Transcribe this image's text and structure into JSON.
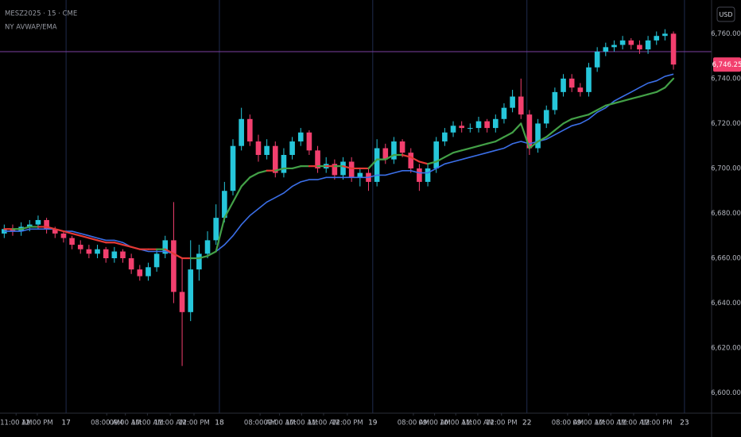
{
  "chart_data": {
    "type": "candlestick",
    "title": "MESZ2025 · 15 · CME",
    "subtitle": "NY AVWAP/EMA",
    "currency": "USD",
    "up_color": "#26c6da",
    "down_color": "#f23f6e",
    "xlim": [
      -0.5,
      83.5
    ],
    "ylim": [
      6591,
      6775
    ],
    "yticks": [
      {
        "value": 6600,
        "label": "6,600.00"
      },
      {
        "value": 6620,
        "label": "6,620.00"
      },
      {
        "value": 6640,
        "label": "6,640.00"
      },
      {
        "value": 6660,
        "label": "6,660.00"
      },
      {
        "value": 6680,
        "label": "6,680.00"
      },
      {
        "value": 6700,
        "label": "6,700.00"
      },
      {
        "value": 6720,
        "label": "6,720.00"
      },
      {
        "value": 6740,
        "label": "6,740.00"
      },
      {
        "value": 6760,
        "label": "6,760.00"
      }
    ],
    "xticks": [
      {
        "value": 1.4,
        "label": "11:00 AM"
      },
      {
        "value": 3.9,
        "label": "12:00 PM"
      },
      {
        "value": 12.1,
        "label": "08:00 AM"
      },
      {
        "value": 14.3,
        "label": "09:00 AM"
      },
      {
        "value": 16.9,
        "label": "10:00 AM"
      },
      {
        "value": 19.6,
        "label": "11:00 AM"
      },
      {
        "value": 22.4,
        "label": "12:00 PM"
      },
      {
        "value": 30.2,
        "label": "08:00 AM"
      },
      {
        "value": 32.5,
        "label": "09:00 AM"
      },
      {
        "value": 35.1,
        "label": "10:00 AM"
      },
      {
        "value": 37.7,
        "label": "11:00 AM"
      },
      {
        "value": 40.5,
        "label": "12:00 PM"
      },
      {
        "value": 48.3,
        "label": "08:00 AM"
      },
      {
        "value": 50.8,
        "label": "09:00 AM"
      },
      {
        "value": 53.3,
        "label": "10:00 AM"
      },
      {
        "value": 55.9,
        "label": "11:00 AM"
      },
      {
        "value": 58.7,
        "label": "12:00 PM"
      },
      {
        "value": 66.5,
        "label": "08:00 AM"
      },
      {
        "value": 69,
        "label": "09:00 AM"
      },
      {
        "value": 71.6,
        "label": "10:00 AM"
      },
      {
        "value": 74.3,
        "label": "11:00 AM"
      },
      {
        "value": 77,
        "label": "12:00 PM"
      }
    ],
    "session_breaks": [
      {
        "value": 7.3,
        "label": "17"
      },
      {
        "value": 25.4,
        "label": "18"
      },
      {
        "value": 43.5,
        "label": "19"
      },
      {
        "value": 61.7,
        "label": "22"
      },
      {
        "value": 80.3,
        "label": "23"
      }
    ],
    "level_line": {
      "value": 6752,
      "color": "#7b3fa0"
    },
    "last_price": {
      "value": 6746.25,
      "label": "6,746.25"
    },
    "open": [
      6671,
      6673,
      6672,
      6674,
      6675,
      6677,
      6673,
      6671,
      6669,
      6666,
      6664,
      6662,
      6664,
      6660,
      6663,
      6660,
      6655,
      6652,
      6656,
      6662,
      6668,
      6645,
      6636,
      6655,
      6662,
      6668,
      6678,
      6690,
      6710,
      6722,
      6712,
      6706,
      6710,
      6698,
      6706,
      6712,
      6716,
      6708,
      6700,
      6702,
      6697,
      6703,
      6696,
      6698,
      6694,
      6709,
      6704,
      6712,
      6707,
      6700,
      6694,
      6700,
      6712,
      6716,
      6719,
      6718,
      6718,
      6721,
      6718,
      6722,
      6727,
      6732,
      6724,
      6709,
      6720,
      6726,
      6734,
      6740,
      6736,
      6734,
      6745,
      6752,
      6754,
      6755,
      6757,
      6755,
      6753,
      6757,
      6759,
      6760
    ],
    "high": [
      6675,
      6675,
      6676,
      6677,
      6679,
      6678,
      6674,
      6672,
      6670,
      6668,
      6666,
      6666,
      6665,
      6665,
      6664,
      6662,
      6657,
      6658,
      6664,
      6670,
      6685,
      6660,
      6668,
      6666,
      6672,
      6684,
      6694,
      6713,
      6727,
      6724,
      6715,
      6713,
      6712,
      6709,
      6714,
      6718,
      6717,
      6710,
      6705,
      6704,
      6705,
      6705,
      6700,
      6700,
      6713,
      6711,
      6714,
      6713,
      6709,
      6702,
      6702,
      6714,
      6718,
      6721,
      6721,
      6720,
      6723,
      6722,
      6724,
      6729,
      6735,
      6740,
      6726,
      6722,
      6728,
      6736,
      6742,
      6742,
      6738,
      6747,
      6754,
      6756,
      6757,
      6759,
      6758,
      6757,
      6759,
      6761,
      6762,
      6761
    ],
    "low": [
      6669,
      6670,
      6670,
      6672,
      6673,
      6671,
      6669,
      6667,
      6664,
      6662,
      6660,
      6660,
      6658,
      6658,
      6658,
      6653,
      6650,
      6650,
      6654,
      6660,
      6640,
      6612,
      6632,
      6650,
      6660,
      6666,
      6676,
      6688,
      6708,
      6710,
      6703,
      6704,
      6696,
      6696,
      6704,
      6710,
      6706,
      6698,
      6698,
      6695,
      6695,
      6694,
      6692,
      6690,
      6692,
      6702,
      6702,
      6705,
      6698,
      6690,
      6692,
      6698,
      6710,
      6714,
      6716,
      6716,
      6716,
      6716,
      6716,
      6720,
      6725,
      6722,
      6706,
      6707,
      6718,
      6724,
      6732,
      6734,
      6732,
      6732,
      6743,
      6750,
      6752,
      6753,
      6753,
      6751,
      6751,
      6755,
      6757,
      6744
    ],
    "close": [
      6673,
      6672,
      6674,
      6675,
      6677,
      6673,
      6671,
      6669,
      6666,
      6664,
      6662,
      6664,
      6660,
      6663,
      6660,
      6655,
      6652,
      6656,
      6662,
      6668,
      6645,
      6636,
      6655,
      6662,
      6668,
      6678,
      6690,
      6710,
      6722,
      6712,
      6706,
      6710,
      6698,
      6706,
      6712,
      6716,
      6708,
      6700,
      6702,
      6697,
      6703,
      6696,
      6698,
      6694,
      6709,
      6704,
      6712,
      6707,
      6700,
      6694,
      6700,
      6712,
      6716,
      6719,
      6718,
      6718,
      6721,
      6718,
      6722,
      6727,
      6732,
      6724,
      6709,
      6720,
      6726,
      6734,
      6740,
      6736,
      6734,
      6745,
      6752,
      6754,
      6755,
      6757,
      6755,
      6753,
      6757,
      6759,
      6760,
      6746.25
    ],
    "series": [
      {
        "name": "EMA",
        "color": "#3b6fe8",
        "values": [
          6672,
          6672,
          6672,
          6673,
          6673,
          6673,
          6673,
          6672,
          6672,
          6671,
          6670,
          6669,
          6668,
          6668,
          6667,
          6665,
          6664,
          6663,
          6663,
          6663,
          6662,
          6660,
          6660,
          6660,
          6661,
          6663,
          6666,
          6670,
          6675,
          6679,
          6682,
          6685,
          6687,
          6689,
          6692,
          6694,
          6695,
          6695,
          6696,
          6696,
          6696,
          6696,
          6696,
          6696,
          6697,
          6697,
          6698,
          6699,
          6699,
          6698,
          6698,
          6700,
          6702,
          6703,
          6704,
          6705,
          6706,
          6707,
          6708,
          6709,
          6711,
          6712,
          6711,
          6712,
          6713,
          6715,
          6717,
          6719,
          6720,
          6722,
          6725,
          6727,
          6730,
          6732,
          6734,
          6736,
          6738,
          6739,
          6741,
          6742
        ]
      },
      {
        "name": "AVWAP",
        "color": "#43a047",
        "below_color": "#e53935",
        "values": [
          6673,
          6673,
          6673,
          6674,
          6674,
          6674,
          6673,
          6672,
          6671,
          6670,
          6669,
          6668,
          6667,
          6667,
          6666,
          6665,
          6664,
          6664,
          6664,
          6664,
          6662,
          6660,
          6660,
          6660,
          6661,
          6663,
          6678,
          6685,
          6692,
          6696,
          6698,
          6699,
          6699,
          6700,
          6700,
          6701,
          6701,
          6701,
          6701,
          6701,
          6701,
          6700,
          6700,
          6700,
          6704,
          6704,
          6706,
          6706,
          6705,
          6703,
          6702,
          6703,
          6705,
          6707,
          6708,
          6709,
          6710,
          6711,
          6712,
          6714,
          6716,
          6720,
          6709,
          6712,
          6714,
          6717,
          6720,
          6722,
          6723,
          6724,
          6726,
          6728,
          6729,
          6730,
          6731,
          6732,
          6733,
          6734,
          6736,
          6740
        ]
      }
    ]
  }
}
